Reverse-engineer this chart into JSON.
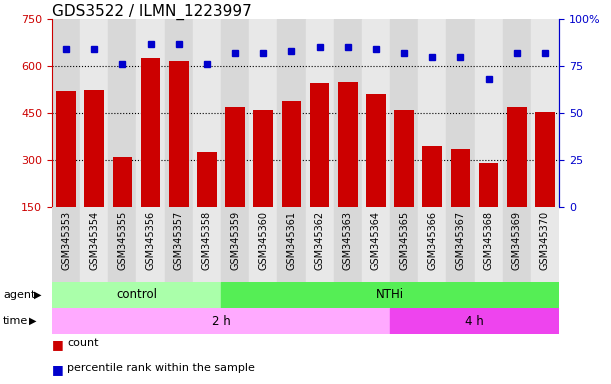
{
  "title": "GDS3522 / ILMN_1223997",
  "samples": [
    "GSM345353",
    "GSM345354",
    "GSM345355",
    "GSM345356",
    "GSM345357",
    "GSM345358",
    "GSM345359",
    "GSM345360",
    "GSM345361",
    "GSM345362",
    "GSM345363",
    "GSM345364",
    "GSM345365",
    "GSM345366",
    "GSM345367",
    "GSM345368",
    "GSM345369",
    "GSM345370"
  ],
  "counts": [
    520,
    525,
    310,
    625,
    615,
    325,
    470,
    460,
    490,
    545,
    550,
    510,
    460,
    345,
    335,
    290,
    470,
    455
  ],
  "percentile_ranks": [
    84,
    84,
    76,
    87,
    87,
    76,
    82,
    82,
    83,
    85,
    85,
    84,
    82,
    80,
    80,
    68,
    82,
    82
  ],
  "ylim_left": [
    150,
    750
  ],
  "ylim_right": [
    0,
    100
  ],
  "yticks_left": [
    150,
    300,
    450,
    600,
    750
  ],
  "yticks_right": [
    0,
    25,
    50,
    75,
    100
  ],
  "bar_color": "#cc0000",
  "dot_color": "#0000cc",
  "grid_color": "#000000",
  "agent_groups": [
    {
      "label": "control",
      "start": 0,
      "end": 6,
      "color": "#aaffaa"
    },
    {
      "label": "NTHi",
      "start": 6,
      "end": 18,
      "color": "#55ee55"
    }
  ],
  "time_groups": [
    {
      "label": "2 h",
      "start": 0,
      "end": 12,
      "color": "#ffaaff"
    },
    {
      "label": "4 h",
      "start": 12,
      "end": 18,
      "color": "#ee44ee"
    }
  ],
  "legend_count_label": "count",
  "legend_pct_label": "percentile rank within the sample",
  "left_axis_color": "#cc0000",
  "right_axis_color": "#0000cc",
  "title_fontsize": 11,
  "tick_fontsize": 7,
  "bar_width": 0.7,
  "col_colors": [
    "#d8d8d8",
    "#e8e8e8"
  ]
}
